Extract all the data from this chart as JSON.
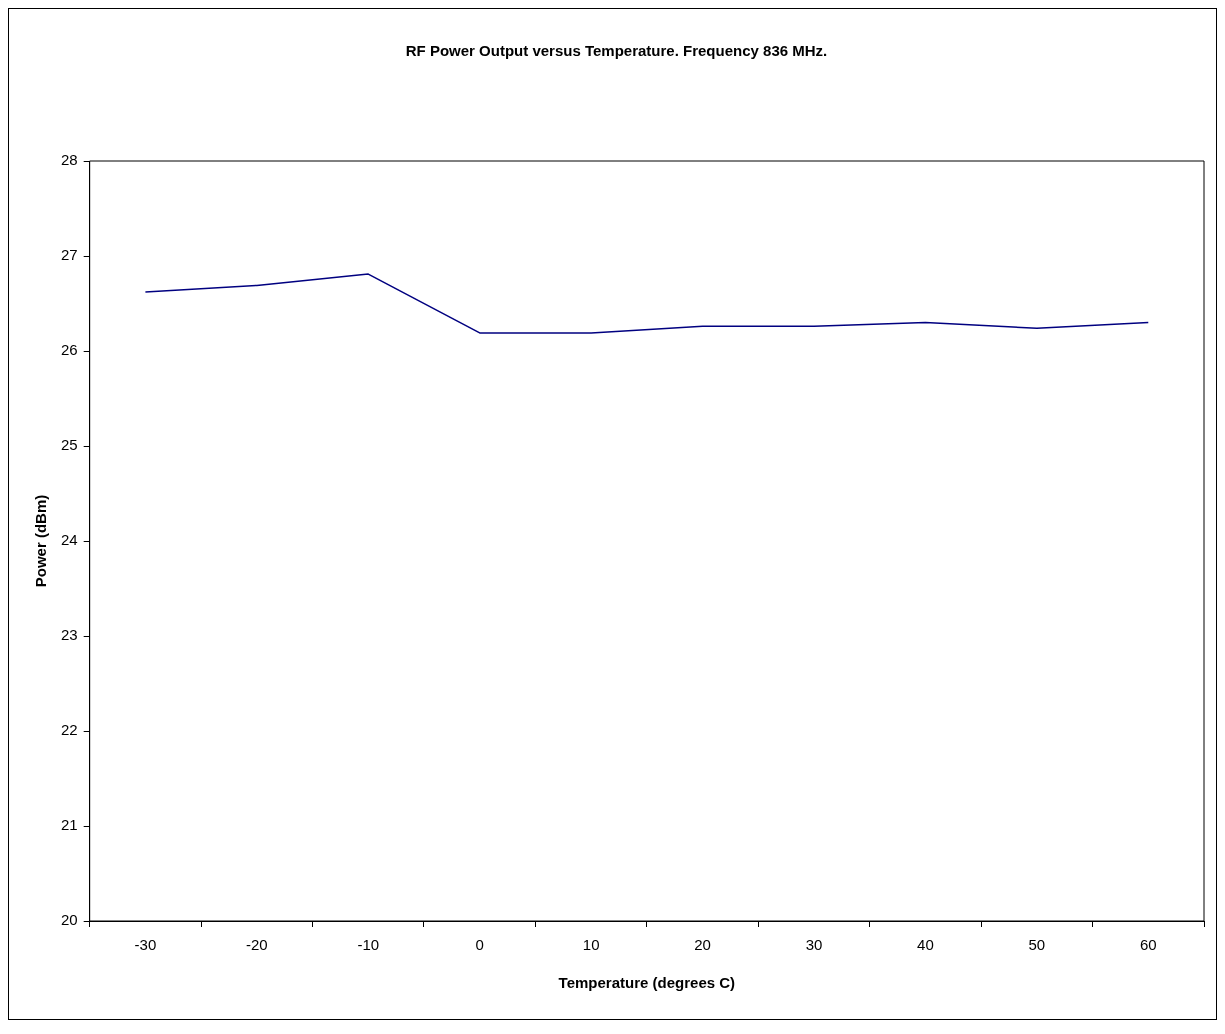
{
  "chart_data": {
    "type": "line",
    "title": "RF Power Output versus Temperature. Frequency 836 MHz.",
    "xlabel": "Temperature (degrees C)",
    "ylabel": "Power (dBm)",
    "categories": [
      "-30",
      "-20",
      "-10",
      "0",
      "10",
      "20",
      "30",
      "40",
      "50",
      "60"
    ],
    "series": [
      {
        "color": "#000080",
        "values": [
          26.62,
          26.69,
          26.81,
          26.19,
          26.19,
          26.26,
          26.26,
          26.3,
          26.24,
          26.3
        ]
      }
    ],
    "ylim": [
      20,
      28
    ],
    "yticks": [
      20,
      21,
      22,
      23,
      24,
      25,
      26,
      27,
      28
    ],
    "grid": false,
    "legend": false,
    "marker": "none",
    "line_style": "solid"
  }
}
